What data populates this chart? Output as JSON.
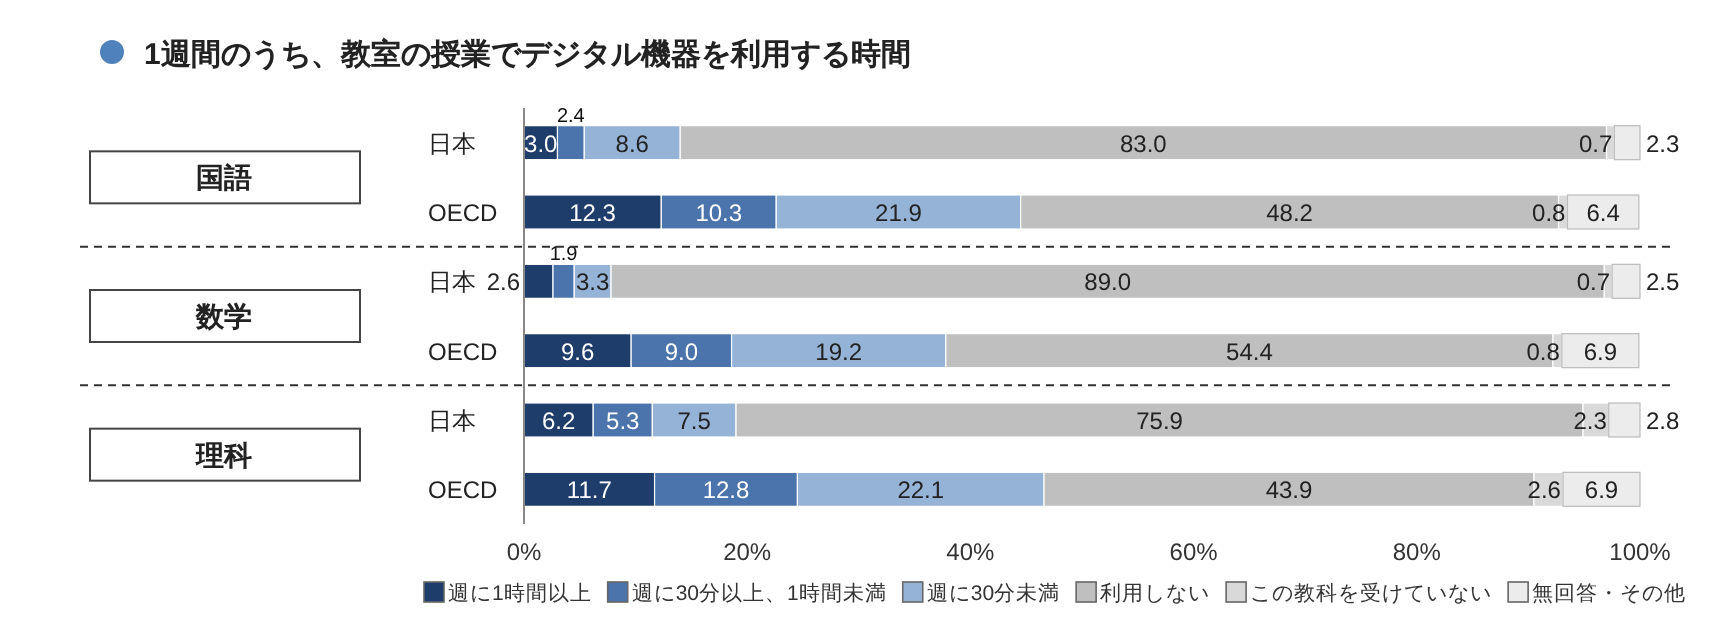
{
  "chart_data": {
    "type": "bar",
    "orientation": "horizontal",
    "stacked": true,
    "title": "1週間のうち、教室の授業でデジタル機器を利用する時間",
    "categories": [
      "日本",
      "OECD",
      "日本",
      "OECD",
      "日本",
      "OECD"
    ],
    "annotations": [
      "国語",
      "数学",
      "理科"
    ],
    "series": [
      {
        "name": "週に1時間以上",
        "color": "#1f3d6b",
        "values": [
          3.0,
          12.3,
          2.6,
          9.6,
          6.2,
          11.7
        ],
        "value_labels": [
          "3.0",
          "12.3",
          "2.6",
          "9.6",
          "6.2",
          "11.7"
        ]
      },
      {
        "name": "週に30分以上、1時間未満",
        "color": "#4a74ab",
        "values": [
          2.4,
          10.3,
          1.9,
          9.0,
          5.3,
          12.8
        ],
        "value_labels": [
          "2.4",
          "10.3",
          "1.9",
          "9.0",
          "5.3",
          "12.8"
        ]
      },
      {
        "name": "週に30分未満",
        "color": "#95b3d7",
        "values": [
          8.6,
          21.9,
          3.3,
          19.2,
          7.5,
          22.1
        ],
        "value_labels": [
          "8.6",
          "21.9",
          "3.3",
          "19.2",
          "7.5",
          "22.1"
        ]
      },
      {
        "name": "利用しない",
        "color": "#bfbfbf",
        "values": [
          83.0,
          48.2,
          89.0,
          54.4,
          75.9,
          43.9
        ],
        "value_labels": [
          "83.0",
          "48.2",
          "89.0",
          "54.4",
          "75.9",
          "43.9"
        ]
      },
      {
        "name": "この教科を受けていない",
        "color": "#d9d9d9",
        "values": [
          0.7,
          0.8,
          0.7,
          0.8,
          2.3,
          2.6
        ],
        "value_labels": [
          "0.7",
          "0.8",
          "0.7",
          "0.8",
          "2.3",
          "2.6"
        ]
      },
      {
        "name": "無回答・その他",
        "color": "#ececec",
        "values": [
          2.3,
          6.4,
          2.5,
          6.9,
          2.8,
          6.9
        ],
        "value_labels": [
          "2.3",
          "6.4",
          "2.5",
          "6.9",
          "2.8",
          "6.9"
        ]
      }
    ],
    "xlim": [
      0,
      100
    ],
    "xticks": [
      {
        "value": 0,
        "label": "0%"
      },
      {
        "value": 20,
        "label": "20%"
      },
      {
        "value": 40,
        "label": "40%"
      },
      {
        "value": 60,
        "label": "60%"
      },
      {
        "value": 80,
        "label": "80%"
      },
      {
        "value": 100,
        "label": "100%"
      }
    ],
    "legend": "bottom"
  }
}
